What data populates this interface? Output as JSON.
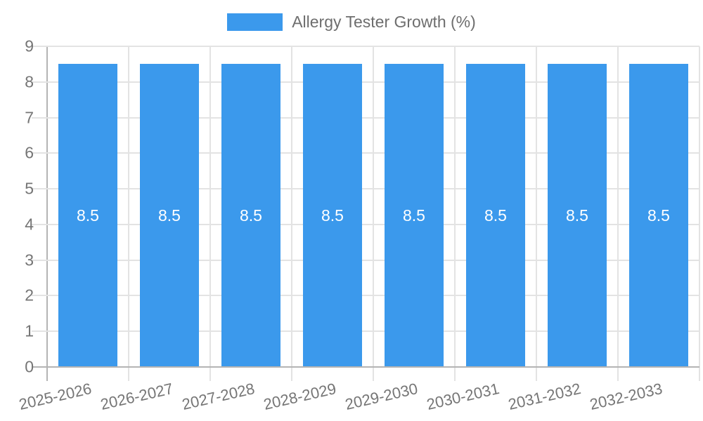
{
  "chart_data": {
    "type": "bar",
    "title": "Allergy Tester Growth (%)",
    "legend_entries": [
      "Allergy Tester Growth (%)"
    ],
    "legend_position": "top-center",
    "categories": [
      "2025-2026",
      "2026-2027",
      "2027-2028",
      "2028-2029",
      "2029-2030",
      "2030-2031",
      "2031-2032",
      "2032-2033"
    ],
    "series": [
      {
        "name": "Allergy Tester Growth (%)",
        "values": [
          8.5,
          8.5,
          8.5,
          8.5,
          8.5,
          8.5,
          8.5,
          8.5
        ]
      }
    ],
    "bar_value_labels": [
      "8.5",
      "8.5",
      "8.5",
      "8.5",
      "8.5",
      "8.5",
      "8.5",
      "8.5"
    ],
    "xlabel": "",
    "ylabel": "",
    "ylim": [
      0,
      9
    ],
    "yticks": [
      "0",
      "1",
      "2",
      "3",
      "4",
      "5",
      "6",
      "7",
      "8",
      "9"
    ],
    "grid": "on",
    "colors": {
      "bar": "#3b99ec",
      "bar_label_text": "#ffffff",
      "tick_text": "#757575",
      "legend_text": "#6e6e6e",
      "gridline": "#e3e3e3",
      "axis_line": "#b4b4b4",
      "background": "#ffffff"
    }
  }
}
